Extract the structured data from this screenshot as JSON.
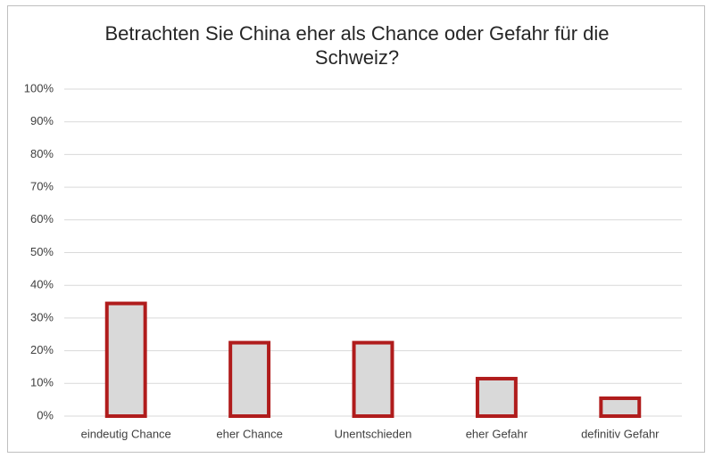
{
  "chart_data": {
    "type": "bar",
    "title": "Betrachten Sie China eher als Chance oder Gefahr für die Schweiz?",
    "categories": [
      "eindeutig Chance",
      "eher Chance",
      "Unentschieden",
      "eher Gefahr",
      "definitiv Gefahr"
    ],
    "values": [
      35,
      23,
      23,
      12,
      6
    ],
    "color": "#d9d9d9",
    "edgecolor": "#b01c1c",
    "ylim": [
      0,
      100
    ],
    "yticks": [
      {
        "value": 0,
        "label": "0%"
      },
      {
        "value": 10,
        "label": "10%"
      },
      {
        "value": 20,
        "label": "20%"
      },
      {
        "value": 30,
        "label": "30%"
      },
      {
        "value": 40,
        "label": "40%"
      },
      {
        "value": 50,
        "label": "50%"
      },
      {
        "value": 60,
        "label": "60%"
      },
      {
        "value": 70,
        "label": "70%"
      },
      {
        "value": 80,
        "label": "80%"
      },
      {
        "value": 90,
        "label": "90%"
      },
      {
        "value": 100,
        "label": "100%"
      }
    ],
    "grid": true
  }
}
